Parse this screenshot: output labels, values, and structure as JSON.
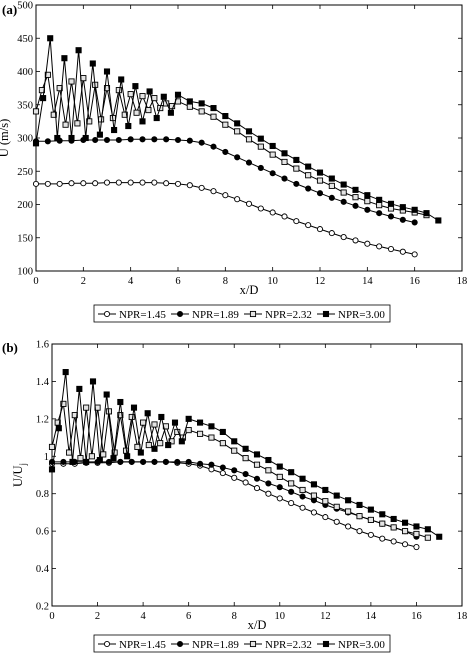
{
  "chart_data": [
    {
      "panel_label": "(a)",
      "type": "line",
      "title": "",
      "xlabel": "x/D",
      "ylabel": "U (m/s)",
      "xlim": [
        0,
        18
      ],
      "ylim": [
        100,
        500
      ],
      "xticks": [
        0,
        2,
        4,
        6,
        8,
        10,
        12,
        14,
        16,
        18
      ],
      "yticks": [
        100,
        150,
        200,
        250,
        300,
        350,
        400,
        450,
        500
      ],
      "grid": false,
      "legend": "bottom",
      "series": [
        {
          "name": "NPR=1.45",
          "marker": "circle-open",
          "x": [
            0,
            0.5,
            1,
            1.5,
            2,
            2.5,
            3,
            3.5,
            4,
            4.5,
            5,
            5.5,
            6,
            6.5,
            7,
            7.5,
            8,
            8.5,
            9,
            9.5,
            10,
            10.5,
            11,
            11.5,
            12,
            12.5,
            13,
            13.5,
            14,
            14.5,
            15,
            15.5,
            16
          ],
          "y": [
            231,
            231,
            231,
            232,
            232,
            232,
            233,
            233,
            233,
            233,
            233,
            232,
            231,
            229,
            225,
            220,
            214,
            208,
            201,
            194,
            188,
            182,
            175,
            169,
            163,
            157,
            151,
            146,
            141,
            137,
            133,
            129,
            125
          ]
        },
        {
          "name": "NPR=1.89",
          "marker": "circle-filled",
          "x": [
            0,
            0.5,
            1,
            1.5,
            2,
            2.5,
            3,
            3.5,
            4,
            4.5,
            5,
            5.5,
            6,
            6.5,
            7,
            7.5,
            8,
            8.5,
            9,
            9.5,
            10,
            10.5,
            11,
            11.5,
            12,
            12.5,
            13,
            13.5,
            14,
            14.5,
            15,
            15.5,
            16
          ],
          "y": [
            295,
            295,
            296,
            296,
            297,
            297,
            297,
            297,
            298,
            298,
            298,
            298,
            297,
            296,
            293,
            287,
            279,
            271,
            263,
            255,
            247,
            239,
            231,
            224,
            217,
            210,
            204,
            198,
            192,
            187,
            182,
            177,
            173
          ]
        },
        {
          "name": "NPR=2.32",
          "marker": "square-open",
          "x": [
            0,
            0.25,
            0.5,
            0.75,
            1,
            1.25,
            1.5,
            1.75,
            2,
            2.25,
            2.5,
            2.75,
            3,
            3.25,
            3.5,
            3.75,
            4,
            4.25,
            4.5,
            4.75,
            5,
            5.25,
            5.5,
            5.75,
            6,
            6.5,
            7,
            7.5,
            8,
            8.5,
            9,
            9.5,
            10,
            10.5,
            11,
            11.5,
            12,
            12.5,
            13,
            13.5,
            14,
            14.5,
            15,
            15.5,
            16,
            16.5
          ],
          "y": [
            340,
            372,
            395,
            335,
            375,
            320,
            385,
            322,
            390,
            325,
            380,
            328,
            375,
            330,
            372,
            335,
            366,
            338,
            363,
            342,
            360,
            345,
            352,
            348,
            355,
            347,
            340,
            332,
            320,
            310,
            298,
            287,
            275,
            264,
            254,
            244,
            236,
            228,
            218,
            211,
            205,
            199,
            194,
            191,
            188,
            184
          ]
        },
        {
          "name": "NPR=3.00",
          "marker": "square-filled",
          "x": [
            0,
            0.3,
            0.6,
            0.9,
            1.2,
            1.5,
            1.8,
            2.1,
            2.4,
            2.7,
            3,
            3.3,
            3.6,
            3.9,
            4.2,
            4.5,
            4.8,
            5.1,
            5.4,
            5.7,
            6,
            6.5,
            7,
            7.5,
            8,
            8.5,
            9,
            9.5,
            10,
            10.5,
            11,
            11.5,
            12,
            12.5,
            13,
            13.5,
            14,
            14.5,
            15,
            15.5,
            16,
            16.5,
            17
          ],
          "y": [
            292,
            360,
            450,
            300,
            420,
            300,
            432,
            300,
            412,
            305,
            400,
            312,
            388,
            318,
            378,
            325,
            370,
            330,
            362,
            338,
            365,
            355,
            352,
            345,
            333,
            322,
            310,
            299,
            288,
            277,
            267,
            257,
            248,
            239,
            230,
            222,
            214,
            207,
            201,
            196,
            192,
            187,
            176
          ]
        }
      ]
    },
    {
      "panel_label": "(b)",
      "type": "line",
      "title": "",
      "xlabel": "x/D",
      "ylabel": "U/U",
      "ylabel_subscript": "j",
      "xlim": [
        0,
        18
      ],
      "ylim": [
        0.2,
        1.6
      ],
      "xticks": [
        0,
        2,
        4,
        6,
        8,
        10,
        12,
        14,
        16,
        18
      ],
      "yticks": [
        0.2,
        0.4,
        0.6,
        0.8,
        1.0,
        1.2,
        1.4,
        1.6
      ],
      "ytick_labels": [
        "0.2",
        "0.4",
        "0.6",
        "0.8",
        "1",
        "1.2",
        "1.4",
        "1.6"
      ],
      "grid": false,
      "legend": "bottom",
      "series": [
        {
          "name": "NPR=1.45",
          "marker": "circle-open",
          "x": [
            0,
            0.5,
            1,
            1.5,
            2,
            2.5,
            3,
            3.5,
            4,
            4.5,
            5,
            5.5,
            6,
            6.5,
            7,
            7.5,
            8,
            8.5,
            9,
            9.5,
            10,
            10.5,
            11,
            11.5,
            12,
            12.5,
            13,
            13.5,
            14,
            14.5,
            15,
            15.5,
            16
          ],
          "y": [
            0.96,
            0.96,
            0.96,
            0.965,
            0.965,
            0.965,
            0.97,
            0.97,
            0.97,
            0.97,
            0.97,
            0.965,
            0.96,
            0.95,
            0.93,
            0.91,
            0.885,
            0.86,
            0.83,
            0.8,
            0.775,
            0.75,
            0.725,
            0.7,
            0.675,
            0.65,
            0.625,
            0.6,
            0.58,
            0.56,
            0.545,
            0.53,
            0.515
          ]
        },
        {
          "name": "NPR=1.89",
          "marker": "circle-filled",
          "x": [
            0,
            0.5,
            1,
            1.5,
            2,
            2.5,
            3,
            3.5,
            4,
            4.5,
            5,
            5.5,
            6,
            6.5,
            7,
            7.5,
            8,
            8.5,
            9,
            9.5,
            10,
            10.5,
            11,
            11.5,
            12,
            12.5,
            13,
            13.5,
            14,
            14.5,
            15,
            15.5,
            16
          ],
          "y": [
            0.97,
            0.97,
            0.97,
            0.97,
            0.97,
            0.97,
            0.97,
            0.97,
            0.97,
            0.97,
            0.97,
            0.97,
            0.97,
            0.96,
            0.955,
            0.94,
            0.925,
            0.905,
            0.88,
            0.855,
            0.835,
            0.81,
            0.785,
            0.765,
            0.74,
            0.72,
            0.7,
            0.68,
            0.66,
            0.64,
            0.62,
            0.6,
            0.57
          ]
        },
        {
          "name": "NPR=2.32",
          "marker": "square-open",
          "x": [
            0,
            0.25,
            0.5,
            0.75,
            1,
            1.25,
            1.5,
            1.75,
            2,
            2.25,
            2.5,
            2.75,
            3,
            3.25,
            3.5,
            3.75,
            4,
            4.25,
            4.5,
            4.75,
            5,
            5.25,
            5.5,
            5.75,
            6,
            6.5,
            7,
            7.5,
            8,
            8.5,
            9,
            9.5,
            10,
            10.5,
            11,
            11.5,
            12,
            12.5,
            13,
            13.5,
            14,
            14.5,
            15,
            15.5,
            16,
            16.5
          ],
          "y": [
            1.05,
            1.18,
            1.28,
            1.02,
            1.22,
            0.99,
            1.26,
            1.0,
            1.26,
            1.01,
            1.24,
            1.02,
            1.22,
            1.03,
            1.21,
            1.05,
            1.18,
            1.06,
            1.17,
            1.07,
            1.16,
            1.08,
            1.13,
            1.1,
            1.14,
            1.12,
            1.1,
            1.07,
            1.03,
            0.99,
            0.955,
            0.925,
            0.89,
            0.855,
            0.82,
            0.79,
            0.76,
            0.73,
            0.705,
            0.68,
            0.66,
            0.64,
            0.62,
            0.6,
            0.585,
            0.565
          ]
        },
        {
          "name": "NPR=3.00",
          "marker": "square-filled",
          "x": [
            0,
            0.3,
            0.6,
            0.9,
            1.2,
            1.5,
            1.8,
            2.1,
            2.4,
            2.7,
            3,
            3.3,
            3.6,
            3.9,
            4.2,
            4.5,
            4.8,
            5.1,
            5.4,
            5.7,
            6,
            6.5,
            7,
            7.5,
            8,
            8.5,
            9,
            9.5,
            10,
            10.5,
            11,
            11.5,
            12,
            12.5,
            13,
            13.5,
            14,
            14.5,
            15,
            15.5,
            16,
            16.5,
            17
          ],
          "y": [
            0.93,
            1.15,
            1.45,
            0.97,
            1.36,
            0.97,
            1.4,
            0.98,
            1.33,
            0.99,
            1.29,
            1.0,
            1.26,
            1.02,
            1.23,
            1.04,
            1.21,
            1.06,
            1.18,
            1.08,
            1.2,
            1.18,
            1.16,
            1.13,
            1.08,
            1.04,
            1.01,
            0.98,
            0.945,
            0.915,
            0.88,
            0.85,
            0.82,
            0.79,
            0.765,
            0.74,
            0.715,
            0.69,
            0.665,
            0.645,
            0.625,
            0.61,
            0.57
          ]
        }
      ]
    }
  ]
}
